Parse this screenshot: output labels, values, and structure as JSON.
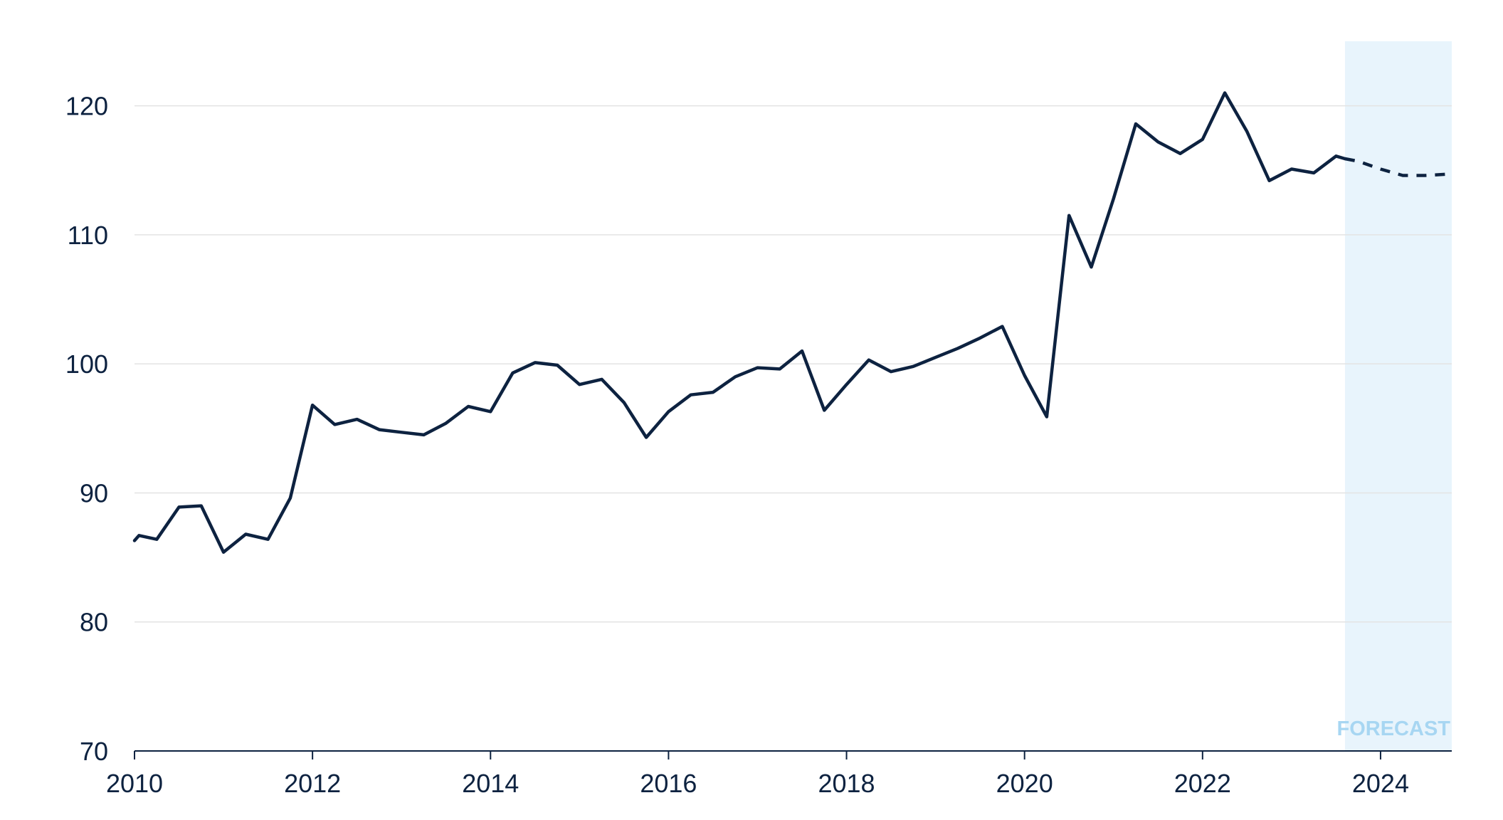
{
  "chart_data": {
    "type": "line",
    "title": "",
    "xlabel": "",
    "ylabel": "",
    "xlim": [
      2010,
      2024.8
    ],
    "ylim": [
      70,
      125
    ],
    "x_ticks": [
      "2010",
      "2012",
      "2014",
      "2016",
      "2018",
      "2020",
      "2022",
      "2024"
    ],
    "y_ticks": [
      "70",
      "80",
      "90",
      "100",
      "110",
      "120"
    ],
    "grid": "horizontal",
    "colors": {
      "line": "#0d2240",
      "forecast_band": "#e8f4fc",
      "forecast_label": "#a7d6f2",
      "grid": "#e3e3e3"
    },
    "forecast_region": {
      "start": 2023.6,
      "end": 2024.8,
      "label": "FORECAST"
    },
    "series": [
      {
        "style": "solid",
        "points": [
          [
            2010.0,
            86.3
          ],
          [
            2010.05,
            86.7
          ],
          [
            2010.25,
            86.4
          ],
          [
            2010.5,
            88.9
          ],
          [
            2010.75,
            89.0
          ],
          [
            2011.0,
            85.4
          ],
          [
            2011.25,
            86.8
          ],
          [
            2011.5,
            86.4
          ],
          [
            2011.75,
            89.6
          ],
          [
            2012.0,
            96.8
          ],
          [
            2012.25,
            95.3
          ],
          [
            2012.5,
            95.7
          ],
          [
            2012.75,
            94.9
          ],
          [
            2013.0,
            94.7
          ],
          [
            2013.25,
            94.5
          ],
          [
            2013.5,
            95.4
          ],
          [
            2013.75,
            96.7
          ],
          [
            2014.0,
            96.3
          ],
          [
            2014.25,
            99.3
          ],
          [
            2014.5,
            100.1
          ],
          [
            2014.75,
            99.9
          ],
          [
            2015.0,
            98.4
          ],
          [
            2015.25,
            98.8
          ],
          [
            2015.5,
            97.0
          ],
          [
            2015.75,
            94.3
          ],
          [
            2016.0,
            96.3
          ],
          [
            2016.25,
            97.6
          ],
          [
            2016.5,
            97.8
          ],
          [
            2016.75,
            99.0
          ],
          [
            2017.0,
            99.7
          ],
          [
            2017.25,
            99.6
          ],
          [
            2017.5,
            101.0
          ],
          [
            2017.75,
            96.4
          ],
          [
            2018.0,
            98.4
          ],
          [
            2018.25,
            100.3
          ],
          [
            2018.5,
            99.4
          ],
          [
            2018.75,
            99.8
          ],
          [
            2019.0,
            100.5
          ],
          [
            2019.25,
            101.2
          ],
          [
            2019.5,
            102.0
          ],
          [
            2019.75,
            102.9
          ],
          [
            2020.0,
            99.1
          ],
          [
            2020.25,
            95.9
          ],
          [
            2020.5,
            111.5
          ],
          [
            2020.75,
            107.5
          ],
          [
            2021.0,
            112.8
          ],
          [
            2021.25,
            118.6
          ],
          [
            2021.5,
            117.2
          ],
          [
            2021.75,
            116.3
          ],
          [
            2022.0,
            117.4
          ],
          [
            2022.25,
            121.0
          ],
          [
            2022.5,
            118.0
          ],
          [
            2022.75,
            114.2
          ],
          [
            2023.0,
            115.1
          ],
          [
            2023.25,
            114.8
          ],
          [
            2023.5,
            116.1
          ],
          [
            2023.6,
            115.9
          ]
        ]
      },
      {
        "style": "dashed",
        "points": [
          [
            2023.6,
            115.9
          ],
          [
            2023.75,
            115.7
          ],
          [
            2024.0,
            115.1
          ],
          [
            2024.25,
            114.6
          ],
          [
            2024.5,
            114.6
          ],
          [
            2024.75,
            114.7
          ]
        ]
      }
    ]
  }
}
